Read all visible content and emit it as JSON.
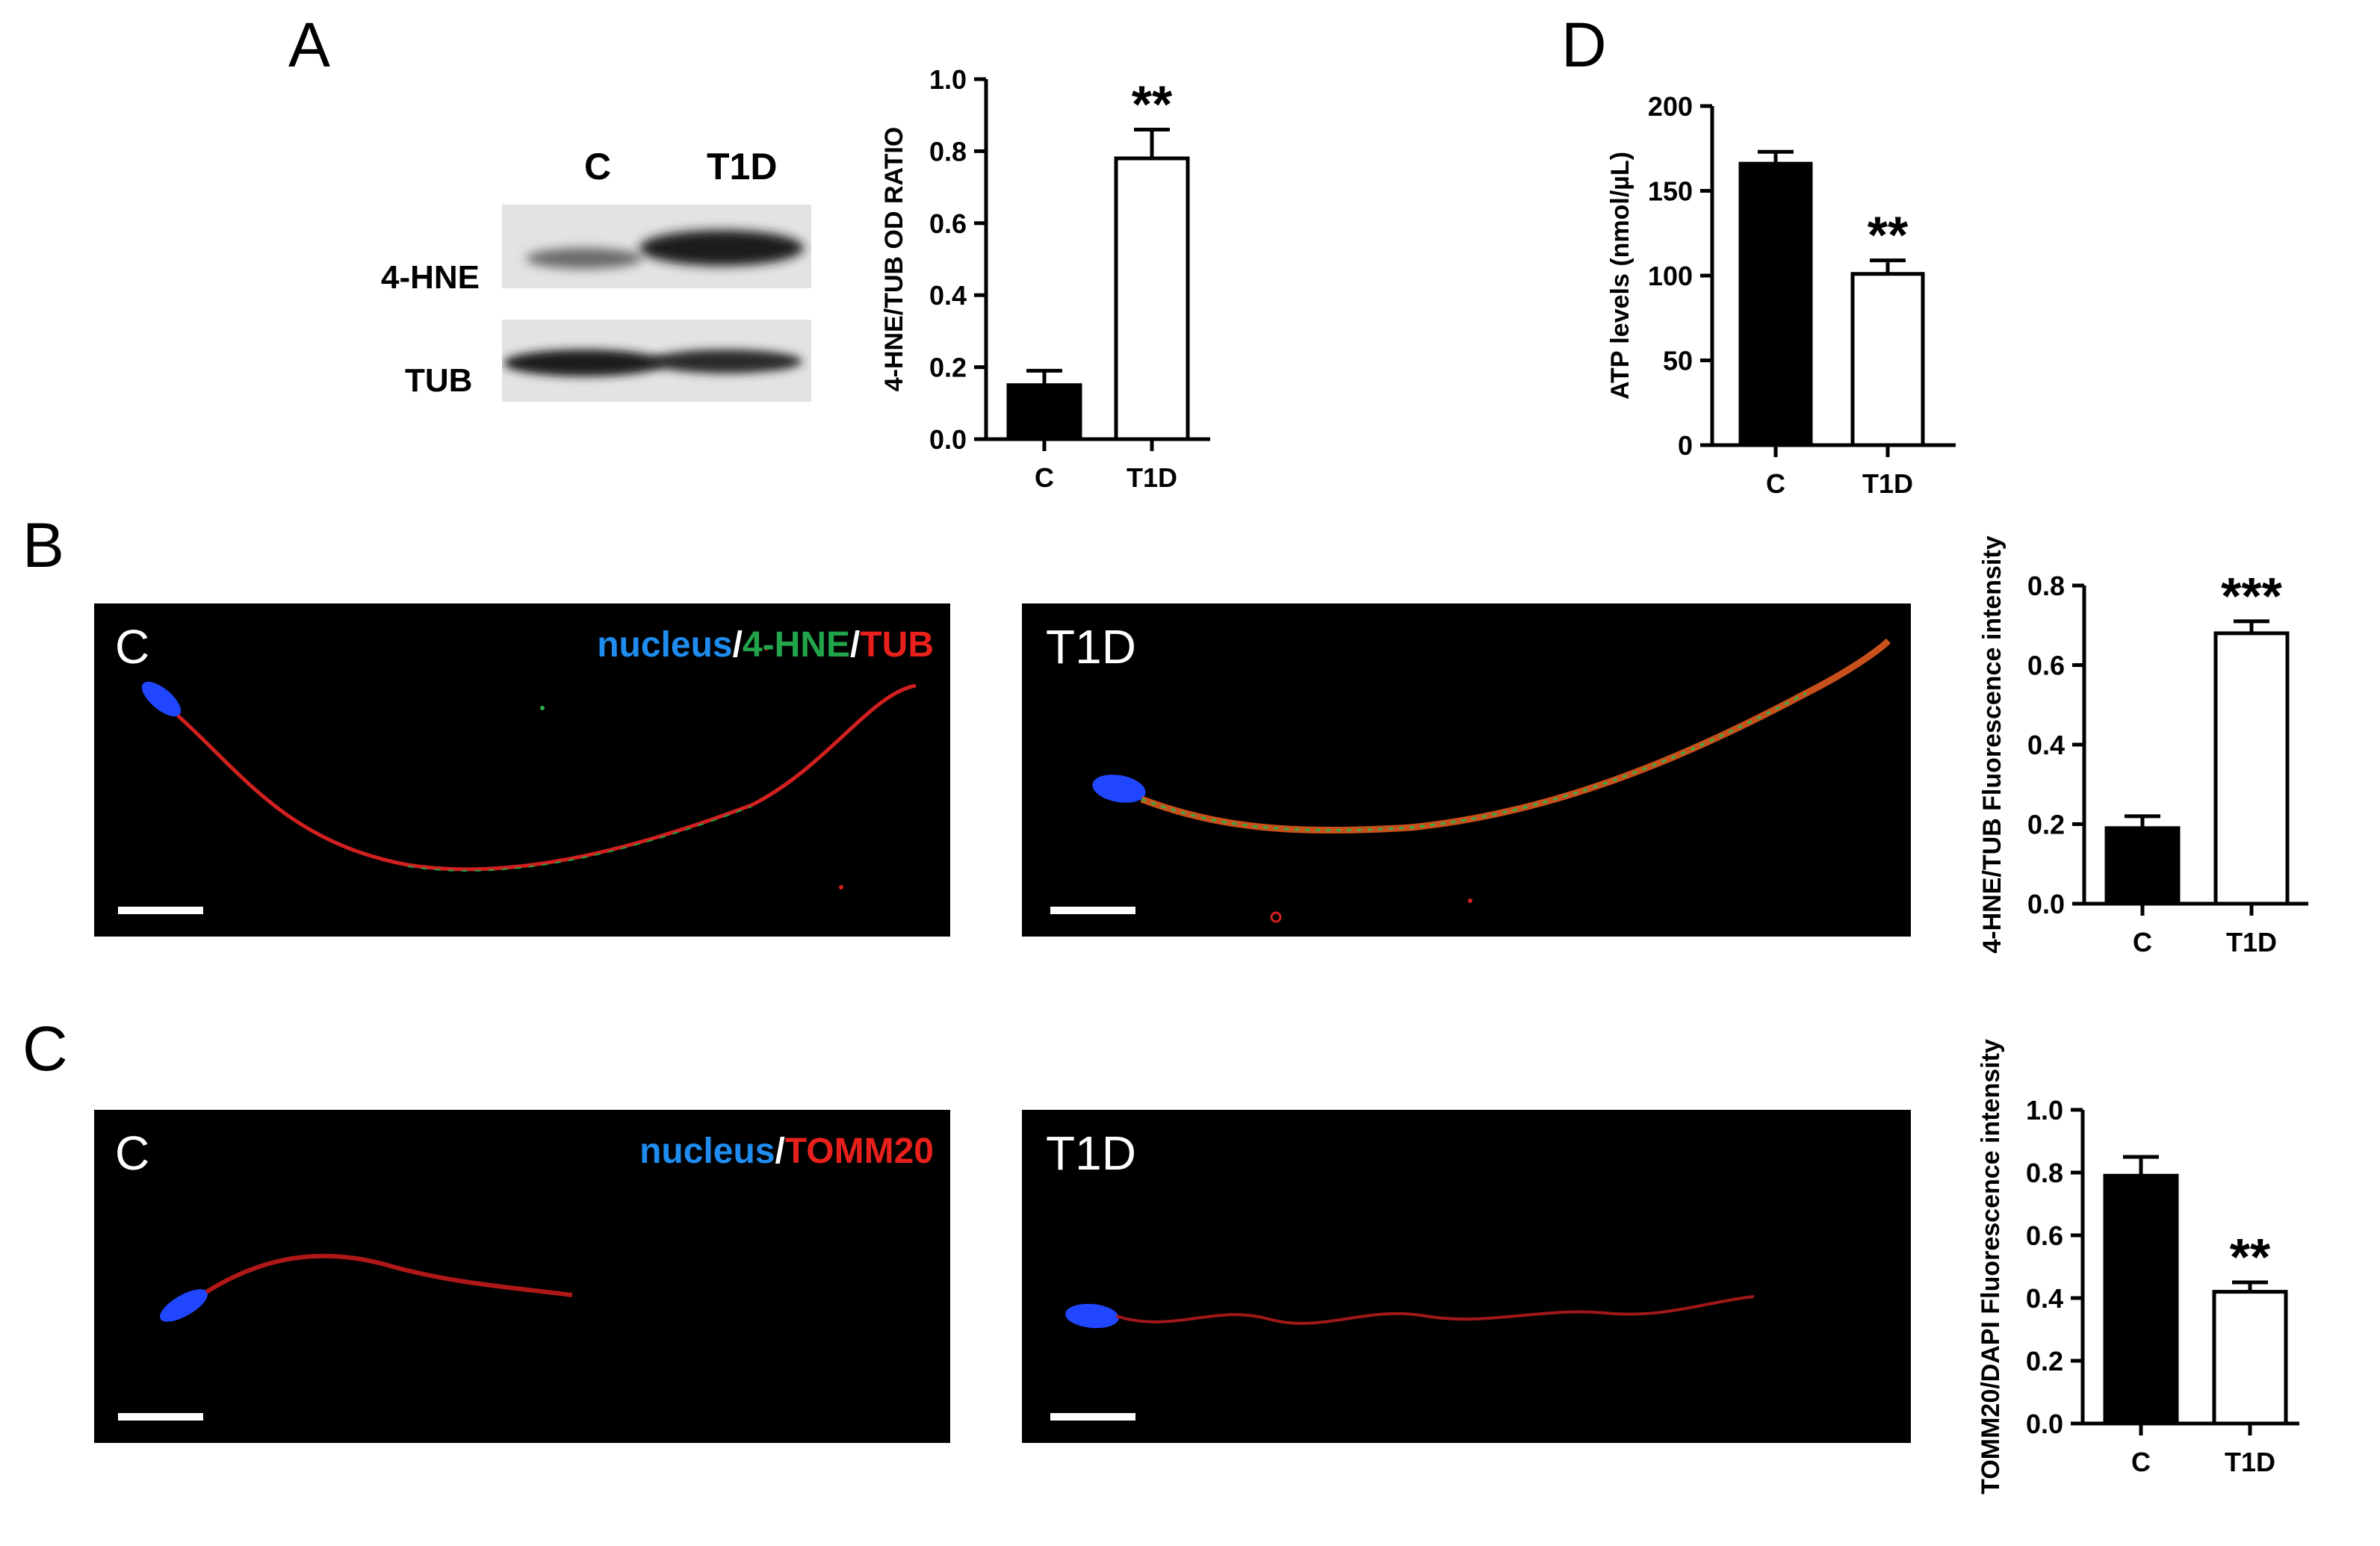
{
  "panels": {
    "a": "A",
    "b": "B",
    "c": "C",
    "d": "D"
  },
  "blot": {
    "lanes": [
      "C",
      "T1D"
    ],
    "rows": [
      "4-HNE",
      "TUB"
    ]
  },
  "micro_b": {
    "left_label": "C",
    "right_label": "T1D",
    "legend": [
      {
        "text": "nucleus",
        "color": "#1f8cf0"
      },
      {
        "text": "/",
        "color": "#ffffff"
      },
      {
        "text": "4-HNE",
        "color": "#22a44a"
      },
      {
        "text": "/",
        "color": "#ffffff"
      },
      {
        "text": "TUB",
        "color": "#e8201c"
      }
    ]
  },
  "micro_c": {
    "left_label": "C",
    "right_label": "T1D",
    "legend": [
      {
        "text": "nucleus",
        "color": "#1f8cf0"
      },
      {
        "text": "/",
        "color": "#ffffff"
      },
      {
        "text": "TOMM20",
        "color": "#e8201c"
      }
    ]
  },
  "chart_data": [
    {
      "id": "A",
      "type": "bar",
      "categories": [
        "C",
        "T1D"
      ],
      "values": [
        0.15,
        0.78
      ],
      "errors": [
        0.04,
        0.08
      ],
      "ylabel": "4-HNE/TUB OD RATIO",
      "ylim": [
        0,
        1.0
      ],
      "yticks": [
        "0.0",
        "0.2",
        "0.4",
        "0.6",
        "0.8",
        "1.0"
      ],
      "significance": "**",
      "significance_index": 1,
      "bar_fill": [
        "#000000",
        "#ffffff"
      ]
    },
    {
      "id": "D",
      "type": "bar",
      "categories": [
        "C",
        "T1D"
      ],
      "values": [
        166,
        101
      ],
      "errors": [
        7,
        8
      ],
      "ylabel": "ATP levels (nmol/µL)",
      "ylim": [
        0,
        200
      ],
      "yticks": [
        "0",
        "50",
        "100",
        "150",
        "200"
      ],
      "significance": "**",
      "significance_index": 1,
      "bar_fill": [
        "#000000",
        "#ffffff"
      ]
    },
    {
      "id": "B",
      "type": "bar",
      "categories": [
        "C",
        "T1D"
      ],
      "values": [
        0.19,
        0.68
      ],
      "errors": [
        0.03,
        0.03
      ],
      "ylabel": "4-HNE/TUB Fluorescence intensity",
      "ylim": [
        0,
        0.8
      ],
      "yticks": [
        "0.0",
        "0.2",
        "0.4",
        "0.6",
        "0.8"
      ],
      "significance": "***",
      "significance_index": 1,
      "bar_fill": [
        "#000000",
        "#ffffff"
      ]
    },
    {
      "id": "C",
      "type": "bar",
      "categories": [
        "C",
        "T1D"
      ],
      "values": [
        0.79,
        0.42
      ],
      "errors": [
        0.06,
        0.03
      ],
      "ylabel": "TOMM20/DAPI Fluorescence intensity",
      "ylim": [
        0,
        1.0
      ],
      "yticks": [
        "0.0",
        "0.2",
        "0.4",
        "0.6",
        "0.8",
        "1.0"
      ],
      "significance": "**",
      "significance_index": 1,
      "bar_fill": [
        "#000000",
        "#ffffff"
      ]
    }
  ]
}
